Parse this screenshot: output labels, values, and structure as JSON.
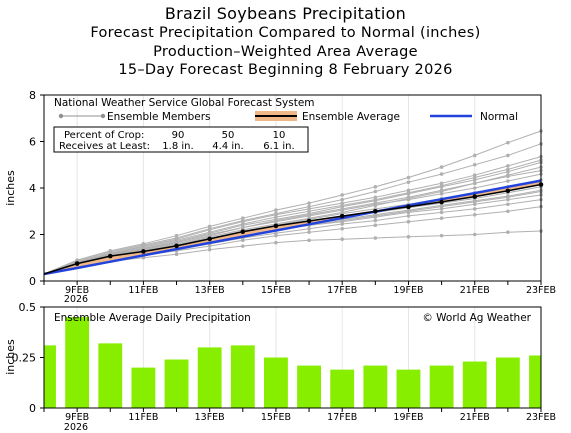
{
  "titles": {
    "line1": "Brazil Soybeans Precipitation",
    "line2": "Forecast Precipitation Compared to Normal (inches)",
    "line3": "Production–Weighted Area Average",
    "line4": "15–Day Forecast Beginning 8 February 2026"
  },
  "colors": {
    "ensemble_members": "#b0b0b0",
    "ensemble_average": "#000000",
    "normal": "#2244dd",
    "above_normal_fill": "#f0b888",
    "bars": "#88ee00"
  },
  "chart_data": [
    {
      "type": "line",
      "title": "National Weather Service Global Forecast System",
      "ylabel": "inches",
      "ylim": [
        0,
        8
      ],
      "yticks": [
        0,
        2,
        4,
        6,
        8
      ],
      "x": [
        "8FEB",
        "9FEB",
        "10FEB",
        "11FEB",
        "12FEB",
        "13FEB",
        "14FEB",
        "15FEB",
        "16FEB",
        "17FEB",
        "18FEB",
        "19FEB",
        "20FEB",
        "21FEB",
        "22FEB",
        "23FEB"
      ],
      "xtick_labels": [
        "9FEB",
        "11FEB",
        "13FEB",
        "15FEB",
        "17FEB",
        "19FEB",
        "21FEB",
        "23FEB"
      ],
      "year_label": "2026",
      "legend": {
        "members": "Ensemble Members",
        "average": "Ensemble Average",
        "normal": "Normal"
      },
      "percent_table": {
        "row1_label": "Percent of Crop:",
        "row2_label": "Receives at Least:",
        "percents": [
          "90",
          "50",
          "10"
        ],
        "amounts": [
          "1.8 in.",
          "4.4 in.",
          "6.1 in."
        ]
      },
      "series": [
        {
          "name": "Ensemble Average",
          "values": [
            0.3,
            0.75,
            1.07,
            1.27,
            1.51,
            1.81,
            2.12,
            2.37,
            2.58,
            2.79,
            3.0,
            3.19,
            3.4,
            3.63,
            3.88,
            4.15
          ]
        },
        {
          "name": "Normal",
          "values": [
            0.3,
            0.56,
            0.83,
            1.1,
            1.37,
            1.64,
            1.91,
            2.17,
            2.44,
            2.71,
            2.98,
            3.25,
            3.52,
            3.78,
            4.05,
            4.32
          ]
        }
      ],
      "members": [
        [
          0.3,
          0.85,
          1.25,
          1.55,
          1.85,
          2.25,
          2.6,
          2.9,
          3.2,
          3.5,
          3.85,
          4.25,
          4.6,
          5.0,
          5.4,
          5.9
        ],
        [
          0.3,
          0.9,
          1.3,
          1.6,
          1.95,
          2.35,
          2.7,
          3.05,
          3.35,
          3.7,
          4.05,
          4.45,
          4.9,
          5.4,
          5.95,
          6.45
        ],
        [
          0.3,
          0.8,
          1.15,
          1.4,
          1.7,
          2.05,
          2.4,
          2.65,
          2.9,
          3.2,
          3.45,
          3.75,
          4.05,
          4.35,
          4.7,
          5.1
        ],
        [
          0.3,
          0.75,
          1.1,
          1.35,
          1.6,
          1.95,
          2.3,
          2.55,
          2.8,
          3.05,
          3.3,
          3.5,
          3.75,
          4.0,
          4.3,
          4.6
        ],
        [
          0.3,
          0.7,
          1.05,
          1.25,
          1.5,
          1.8,
          2.1,
          2.35,
          2.55,
          2.75,
          2.95,
          3.15,
          3.35,
          3.55,
          3.8,
          4.05
        ],
        [
          0.3,
          0.7,
          1.0,
          1.2,
          1.4,
          1.65,
          1.95,
          2.2,
          2.4,
          2.6,
          2.8,
          3.0,
          3.2,
          3.4,
          3.6,
          3.85
        ],
        [
          0.3,
          0.65,
          0.95,
          1.15,
          1.35,
          1.6,
          1.85,
          2.05,
          2.25,
          2.45,
          2.6,
          2.8,
          2.95,
          3.1,
          3.3,
          3.5
        ],
        [
          0.3,
          0.65,
          0.9,
          1.1,
          1.3,
          1.5,
          1.75,
          1.95,
          2.1,
          2.25,
          2.4,
          2.55,
          2.7,
          2.85,
          3.0,
          3.2
        ],
        [
          0.3,
          0.6,
          0.85,
          1.0,
          1.15,
          1.35,
          1.5,
          1.65,
          1.75,
          1.8,
          1.85,
          1.9,
          1.95,
          2.0,
          2.1,
          2.15
        ],
        [
          0.3,
          0.8,
          1.2,
          1.5,
          1.8,
          2.2,
          2.55,
          2.85,
          3.1,
          3.35,
          3.6,
          3.9,
          4.2,
          4.55,
          4.95,
          5.35
        ],
        [
          0.3,
          0.75,
          1.1,
          1.3,
          1.55,
          1.9,
          2.2,
          2.45,
          2.7,
          2.95,
          3.25,
          3.55,
          3.85,
          4.2,
          4.55,
          4.9
        ],
        [
          0.3,
          0.7,
          1.0,
          1.25,
          1.45,
          1.75,
          2.0,
          2.25,
          2.45,
          2.65,
          2.85,
          3.05,
          3.25,
          3.45,
          3.65,
          3.9
        ],
        [
          0.3,
          0.72,
          1.05,
          1.3,
          1.55,
          1.85,
          2.15,
          2.4,
          2.65,
          2.9,
          3.1,
          3.3,
          3.55,
          3.8,
          4.05,
          4.35
        ],
        [
          0.3,
          0.78,
          1.12,
          1.38,
          1.65,
          2.0,
          2.3,
          2.6,
          2.85,
          3.1,
          3.35,
          3.6,
          3.9,
          4.2,
          4.5,
          4.75
        ],
        [
          0.3,
          0.68,
          0.98,
          1.18,
          1.42,
          1.7,
          1.98,
          2.2,
          2.4,
          2.55,
          2.75,
          2.95,
          3.1,
          3.3,
          3.5,
          3.7
        ],
        [
          0.3,
          0.82,
          1.18,
          1.45,
          1.75,
          2.1,
          2.45,
          2.75,
          3.0,
          3.25,
          3.5,
          3.8,
          4.1,
          4.45,
          4.8,
          5.2
        ]
      ]
    },
    {
      "type": "bar",
      "title": "Ensemble Average Daily Precipitation",
      "credit": "© World Ag Weather",
      "ylabel": "inches",
      "ylim": [
        0,
        0.5
      ],
      "yticks": [
        "0",
        "0.25",
        "0.5"
      ],
      "categories": [
        "8FEB",
        "9FEB",
        "10FEB",
        "11FEB",
        "12FEB",
        "13FEB",
        "14FEB",
        "15FEB",
        "16FEB",
        "17FEB",
        "18FEB",
        "19FEB",
        "20FEB",
        "21FEB",
        "22FEB",
        "23FEB"
      ],
      "values": [
        0.31,
        0.45,
        0.32,
        0.2,
        0.24,
        0.3,
        0.31,
        0.25,
        0.21,
        0.19,
        0.21,
        0.19,
        0.21,
        0.23,
        0.25,
        0.26
      ],
      "xtick_labels": [
        "9FEB",
        "11FEB",
        "13FEB",
        "15FEB",
        "17FEB",
        "19FEB",
        "21FEB",
        "23FEB"
      ],
      "year_label": "2026"
    }
  ]
}
